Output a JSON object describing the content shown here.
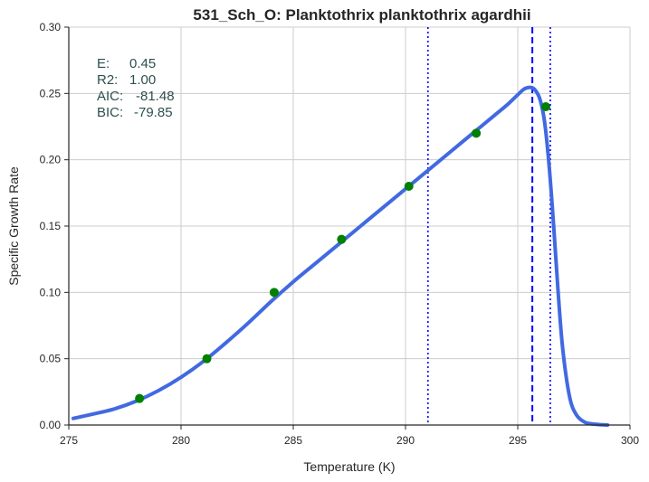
{
  "chart_data": {
    "type": "line",
    "title": "531_Sch_O: Planktothrix planktothrix agardhii",
    "xlabel": "Temperature (K)",
    "ylabel": "Specific Growth Rate",
    "xlim": [
      275,
      300
    ],
    "ylim": [
      0.0,
      0.3
    ],
    "x_ticks": [
      "275",
      "280",
      "285",
      "290",
      "295",
      "300"
    ],
    "y_ticks": [
      "0.00",
      "0.05",
      "0.10",
      "0.15",
      "0.20",
      "0.25",
      "0.30"
    ],
    "grid": true,
    "stats": [
      {
        "label": "E:",
        "value": "0.45"
      },
      {
        "label": "R2:",
        "value": "1.00"
      },
      {
        "label": "AIC:",
        "value": "-81.48"
      },
      {
        "label": "BIC:",
        "value": "-79.85"
      }
    ],
    "series": [
      {
        "kind": "observed-points",
        "color": "#008000",
        "x": [
          278.15,
          281.15,
          284.15,
          287.15,
          290.15,
          293.15,
          296.25
        ],
        "y": [
          0.02,
          0.05,
          0.1,
          0.14,
          0.18,
          0.22,
          0.24
        ]
      },
      {
        "kind": "fitted-curve",
        "color": "#4169e1",
        "x": [
          275.2,
          276,
          277,
          278,
          279,
          280,
          281,
          282,
          283,
          284,
          285,
          286,
          287,
          288,
          289,
          290,
          291,
          292,
          293,
          294,
          294.5,
          295,
          295.3,
          295.6,
          295.8,
          296.0,
          296.2,
          296.4,
          296.6,
          296.8,
          297.0,
          297.3,
          297.6,
          298.0,
          298.5,
          299.0
        ],
        "y": [
          0.005,
          0.008,
          0.012,
          0.018,
          0.026,
          0.036,
          0.048,
          0.062,
          0.077,
          0.093,
          0.108,
          0.122,
          0.136,
          0.15,
          0.164,
          0.178,
          0.192,
          0.206,
          0.22,
          0.234,
          0.241,
          0.249,
          0.2535,
          0.2545,
          0.252,
          0.245,
          0.228,
          0.195,
          0.15,
          0.1,
          0.058,
          0.022,
          0.008,
          0.002,
          0.0005,
          0.0
        ]
      }
    ],
    "vertical_lines": [
      {
        "x": 291.0,
        "style": "dotted",
        "color": "#0000ff"
      },
      {
        "x": 295.65,
        "style": "dashed",
        "color": "#0000ff"
      },
      {
        "x": 296.45,
        "style": "dotted",
        "color": "#0000ff"
      }
    ],
    "colors": {
      "grid": "#cccccc",
      "axis": "#262626",
      "curve": "#4169e1",
      "points": "#008000",
      "vlines": "#0000ff",
      "stat_text": "#2f4f4f"
    }
  }
}
